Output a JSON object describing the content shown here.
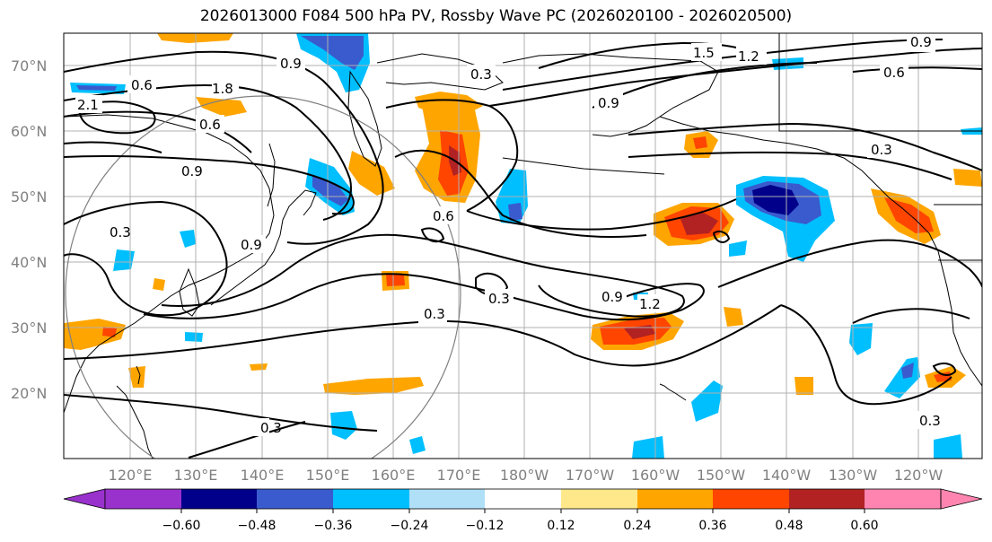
{
  "title": "2026013000 F084 500 hPa PV, Rossby Wave PC (2026020100 - 2026020500)",
  "lat_labels": [
    "70°N",
    "60°N",
    "50°N",
    "40°N",
    "30°N",
    "20°N"
  ],
  "lon_labels": [
    "120°E",
    "130°E",
    "140°E",
    "150°E",
    "160°E",
    "170°E",
    "180°W",
    "170°W",
    "160°W",
    "150°W",
    "140°W",
    "130°W",
    "120°W"
  ],
  "colorbar": {
    "tick_labels": [
      "−0.60",
      "−0.48",
      "−0.36",
      "−0.24",
      "−0.12",
      "0.12",
      "0.24",
      "0.36",
      "0.48",
      "0.60"
    ],
    "colors": [
      "#9932cc",
      "#00008b",
      "#3a5bcd",
      "#00bfff",
      "#b0e0f8",
      "#ffffff",
      "#ffe88a",
      "#ffa500",
      "#ff4500",
      "#b22222",
      "#ff85b0"
    ]
  },
  "contour_labels": [
    "0.3",
    "0.6",
    "0.9",
    "1.2",
    "1.5",
    "1.8",
    "2.1"
  ],
  "colors": {
    "grid": "#b0b0b0",
    "coast": "#000000",
    "contour": "#000000",
    "circle": "#808080"
  }
}
